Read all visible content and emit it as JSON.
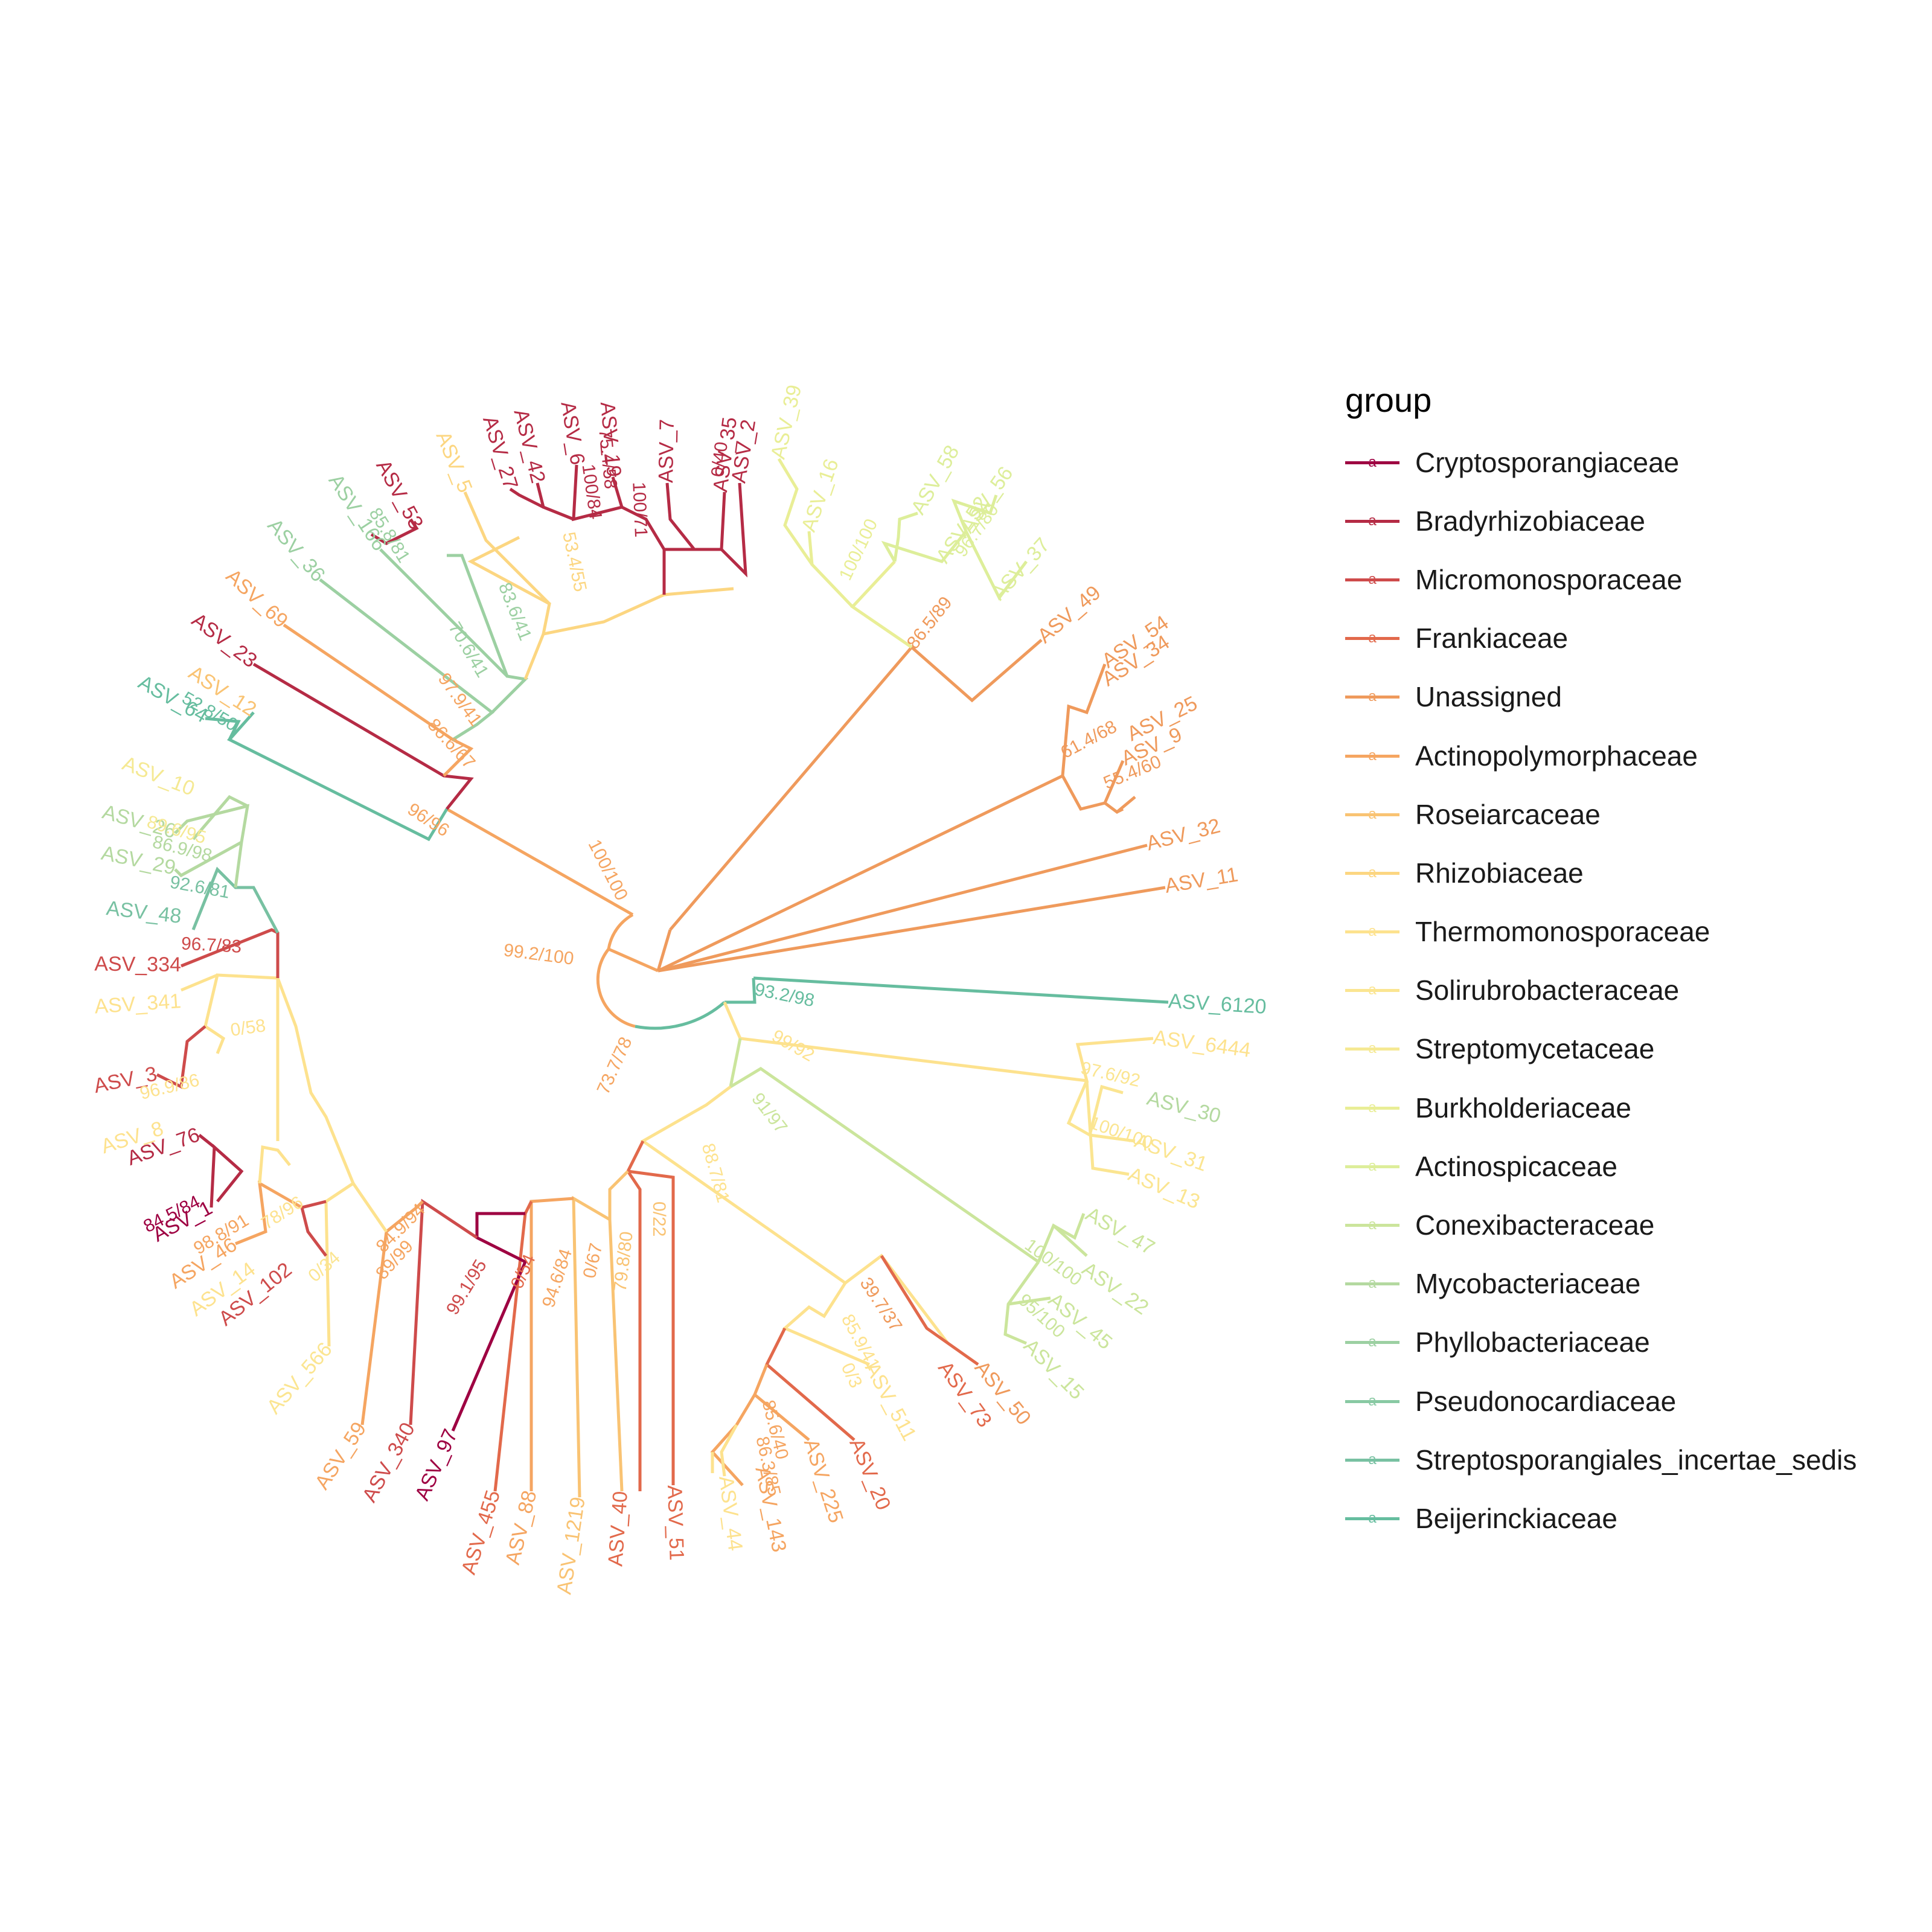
{
  "legend": {
    "title": "group",
    "entries": [
      {
        "label": "Cryptosporangiaceae",
        "color": "#9E0142"
      },
      {
        "label": "Bradyrhizobiaceae",
        "color": "#B52B45"
      },
      {
        "label": "Micromonosporaceae",
        "color": "#CE4B4B"
      },
      {
        "label": "Frankiaceae",
        "color": "#E2694B"
      },
      {
        "label": "Unassigned",
        "color": "#EF9A5C"
      },
      {
        "label": "Actinopolymorphaceae",
        "color": "#F5A561"
      },
      {
        "label": "Roseiarcaceae",
        "color": "#F9C373"
      },
      {
        "label": "Rhizobiaceae",
        "color": "#FCD681"
      },
      {
        "label": "Thermomonosporaceae",
        "color": "#FDE28E"
      },
      {
        "label": "Solirubrobacteraceae",
        "color": "#FBE591"
      },
      {
        "label": "Streptomycetaceae",
        "color": "#F5E993"
      },
      {
        "label": "Burkholderiaceae",
        "color": "#E9EE96"
      },
      {
        "label": "Actinospicaceae",
        "color": "#DDEE9A"
      },
      {
        "label": "Conexibacteraceae",
        "color": "#CBE59C"
      },
      {
        "label": "Mycobacteriaceae",
        "color": "#B4D9A0"
      },
      {
        "label": "Phyllobacteriaceae",
        "color": "#9CD0A2"
      },
      {
        "label": "Pseudonocardiaceae",
        "color": "#88C9A3"
      },
      {
        "label": "Streptosporangiales_incertae_sedis",
        "color": "#78C1A2"
      },
      {
        "label": "Beijerinckiaceae",
        "color": "#66BD9F"
      }
    ]
  },
  "tips": [
    {
      "label": "ASV_2",
      "color": "#B52B45"
    },
    {
      "label": "ASV_35",
      "color": "#B52B45"
    },
    {
      "label": "ASV_7",
      "color": "#B52B45"
    },
    {
      "label": "ASV_19",
      "color": "#B52B45"
    },
    {
      "label": "ASV_6",
      "color": "#B52B45"
    },
    {
      "label": "ASV_42",
      "color": "#B52B45"
    },
    {
      "label": "ASV_27",
      "color": "#B52B45"
    },
    {
      "label": "ASV_5",
      "color": "#FCD681"
    },
    {
      "label": "ASV_53",
      "color": "#B52B45"
    },
    {
      "label": "ASV_166",
      "color": "#9CD0A2"
    },
    {
      "label": "ASV_36",
      "color": "#9CD0A2"
    },
    {
      "label": "ASV_69",
      "color": "#F5A561"
    },
    {
      "label": "ASV_23",
      "color": "#B52B45"
    },
    {
      "label": "ASV_12",
      "color": "#F9C373"
    },
    {
      "label": "ASV_64",
      "color": "#66BD9F"
    },
    {
      "label": "ASV_10",
      "color": "#F5E993"
    },
    {
      "label": "ASV_26",
      "color": "#B4D9A0"
    },
    {
      "label": "ASV_29",
      "color": "#B4D9A0"
    },
    {
      "label": "ASV_48",
      "color": "#78C1A2"
    },
    {
      "label": "ASV_334",
      "color": "#CE4B4B"
    },
    {
      "label": "ASV_341",
      "color": "#FDE28E"
    },
    {
      "label": "ASV_3",
      "color": "#CE4B4B"
    },
    {
      "label": "ASV_8",
      "color": "#FDE28E"
    },
    {
      "label": "ASV_76",
      "color": "#B52B45"
    },
    {
      "label": "ASV_1",
      "color": "#9E0142"
    },
    {
      "label": "ASV_46",
      "color": "#F5A561"
    },
    {
      "label": "ASV_14",
      "color": "#FDE28E"
    },
    {
      "label": "ASV_102",
      "color": "#CE4B4B"
    },
    {
      "label": "ASV_566",
      "color": "#FBE591"
    },
    {
      "label": "ASV_59",
      "color": "#F5A561"
    },
    {
      "label": "ASV_340",
      "color": "#CE4B4B"
    },
    {
      "label": "ASV_97",
      "color": "#9E0142"
    },
    {
      "label": "ASV_455",
      "color": "#E2694B"
    },
    {
      "label": "ASV_88",
      "color": "#F5A561"
    },
    {
      "label": "ASV_1219",
      "color": "#F9C373"
    },
    {
      "label": "ASV_40",
      "color": "#E2694B"
    },
    {
      "label": "ASV_51",
      "color": "#E2694B"
    },
    {
      "label": "ASV_44",
      "color": "#FDE28E"
    },
    {
      "label": "ASV_143",
      "color": "#F5A561"
    },
    {
      "label": "ASV_225",
      "color": "#F5A561"
    },
    {
      "label": "ASV_20",
      "color": "#E2694B"
    },
    {
      "label": "ASV_511",
      "color": "#FDE28E"
    },
    {
      "label": "ASV_73",
      "color": "#E2694B"
    },
    {
      "label": "ASV_50",
      "color": "#EF9A5C"
    },
    {
      "label": "ASV_15",
      "color": "#CBE59C"
    },
    {
      "label": "ASV_45",
      "color": "#CBE59C"
    },
    {
      "label": "ASV_22",
      "color": "#CBE59C"
    },
    {
      "label": "ASV_47",
      "color": "#CBE59C"
    },
    {
      "label": "ASV_13",
      "color": "#FBE591"
    },
    {
      "label": "ASV_31",
      "color": "#FBE591"
    },
    {
      "label": "ASV_30",
      "color": "#B4D9A0"
    },
    {
      "label": "ASV_6444",
      "color": "#FDE28E"
    },
    {
      "label": "ASV_6120",
      "color": "#66BD9F"
    },
    {
      "label": "ASV_11",
      "color": "#EF9A5C"
    },
    {
      "label": "ASV_32",
      "color": "#EF9A5C"
    },
    {
      "label": "ASV_9",
      "color": "#EF9A5C"
    },
    {
      "label": "ASV_25",
      "color": "#EF9A5C"
    },
    {
      "label": "ASV_34",
      "color": "#EF9A5C"
    },
    {
      "label": "ASV_54",
      "color": "#EF9A5C"
    },
    {
      "label": "ASV_49",
      "color": "#EF9A5C"
    },
    {
      "label": "ASV_37",
      "color": "#DDEE9A"
    },
    {
      "label": "ASV_56",
      "color": "#DDEE9A"
    },
    {
      "label": "ASV_52",
      "color": "#DDEE9A"
    },
    {
      "label": "ASV_58",
      "color": "#DDEE9A"
    },
    {
      "label": "ASV_16",
      "color": "#E9EE96"
    },
    {
      "label": "ASV_39",
      "color": "#E9EE96"
    }
  ],
  "node_labels": [
    {
      "text": "100/100",
      "color": "#F5A561"
    },
    {
      "text": "99.2/100",
      "color": "#F5A561"
    },
    {
      "text": "73.7/78",
      "color": "#F5A561"
    },
    {
      "text": "93.2/98",
      "color": "#66BD9F"
    },
    {
      "text": "99/92",
      "color": "#FDE28E"
    },
    {
      "text": "91/97",
      "color": "#CBE59C"
    },
    {
      "text": "88.7/81",
      "color": "#FDE28E"
    },
    {
      "text": "86.5/89",
      "color": "#EF9A5C"
    },
    {
      "text": "100/100",
      "color": "#E9EE96"
    },
    {
      "text": "96.7/80",
      "color": "#DDEE9A"
    },
    {
      "text": "61.4/68",
      "color": "#EF9A5C"
    },
    {
      "text": "55.4/60",
      "color": "#EF9A5C"
    },
    {
      "text": "97.6/92",
      "color": "#FBE591"
    },
    {
      "text": "100/100",
      "color": "#FBE591"
    },
    {
      "text": "100/100",
      "color": "#CBE59C"
    },
    {
      "text": "95/100",
      "color": "#CBE59C"
    },
    {
      "text": "39.7/37",
      "color": "#EF9A5C"
    },
    {
      "text": "85.9/41",
      "color": "#FDE28E"
    },
    {
      "text": "0/3",
      "color": "#FDE28E"
    },
    {
      "text": "85.6/40",
      "color": "#F5A561"
    },
    {
      "text": "86.3/85",
      "color": "#F5A561"
    },
    {
      "text": "0/22",
      "color": "#F9C373"
    },
    {
      "text": "79.8/80",
      "color": "#F9C373"
    },
    {
      "text": "0/67",
      "color": "#F5A561"
    },
    {
      "text": "94.6/84",
      "color": "#F5A561"
    },
    {
      "text": "0/54",
      "color": "#E2694B"
    },
    {
      "text": "99.1/95",
      "color": "#CE4B4B"
    },
    {
      "text": "84.9/94",
      "color": "#F5A561"
    },
    {
      "text": "89/99",
      "color": "#F5A561"
    },
    {
      "text": "0/34",
      "color": "#FBE591"
    },
    {
      "text": "78/96",
      "color": "#FDE28E"
    },
    {
      "text": "0/58",
      "color": "#FDE28E"
    },
    {
      "text": "84.5/84",
      "color": "#9E0142"
    },
    {
      "text": "98.8/91",
      "color": "#F5A561"
    },
    {
      "text": "96.9/86",
      "color": "#FDE28E"
    },
    {
      "text": "96.7/83",
      "color": "#CE4B4B"
    },
    {
      "text": "92.6/81",
      "color": "#78C1A2"
    },
    {
      "text": "86.9/98",
      "color": "#B4D9A0"
    },
    {
      "text": "89.6/95",
      "color": "#F5E993"
    },
    {
      "text": "96/96",
      "color": "#F5A561"
    },
    {
      "text": "86.6/67",
      "color": "#F5A561"
    },
    {
      "text": "97.9/41",
      "color": "#F5A561"
    },
    {
      "text": "70.6/41",
      "color": "#9CD0A2"
    },
    {
      "text": "83.6/41",
      "color": "#9CD0A2"
    },
    {
      "text": "53.4/55",
      "color": "#FCD681"
    },
    {
      "text": "85.8/81",
      "color": "#9CD0A2"
    },
    {
      "text": "100/71",
      "color": "#B52B45"
    },
    {
      "text": "100/84",
      "color": "#B52B45"
    },
    {
      "text": "75.4/58",
      "color": "#B52B45"
    },
    {
      "text": "0/40",
      "color": "#B52B45"
    },
    {
      "text": "52.8/50",
      "color": "#66BD9F"
    }
  ]
}
